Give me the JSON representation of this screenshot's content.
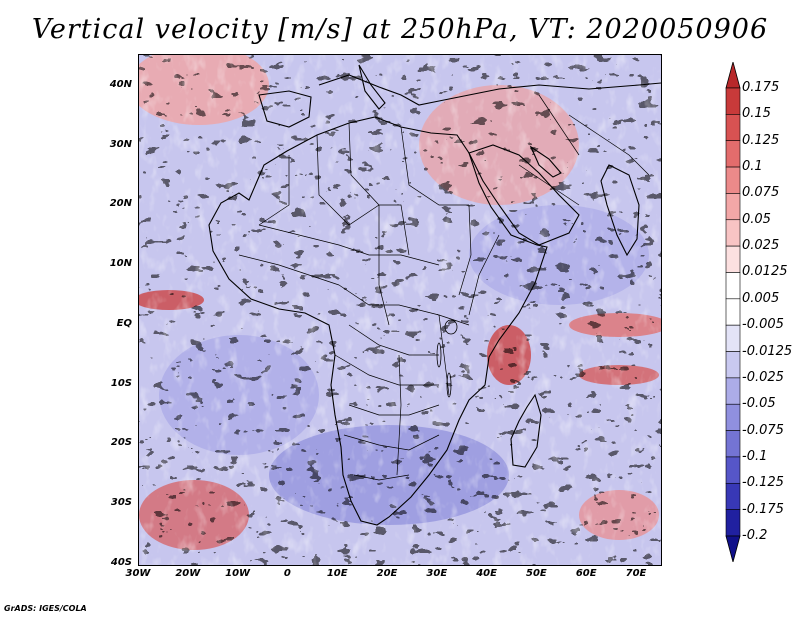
{
  "title": "Vertical velocity [m/s] at 250hPa, VT: 2020050906",
  "credit": "GrADS: IGES/COLA",
  "map": {
    "lon_range": [
      -30,
      75
    ],
    "lat_range": [
      -40,
      45
    ],
    "lat_ticks": [
      "40N",
      "30N",
      "20N",
      "10N",
      "EQ",
      "10S",
      "20S",
      "30S",
      "40S"
    ],
    "lon_ticks": [
      "30W",
      "20W",
      "10W",
      "0",
      "10E",
      "20E",
      "30E",
      "40E",
      "50E",
      "60E",
      "70E"
    ]
  },
  "colorbar": {
    "labels": [
      "0.175",
      "0.15",
      "0.125",
      "0.1",
      "0.075",
      "0.05",
      "0.025",
      "0.0125",
      "0.005",
      "-0.005",
      "-0.0125",
      "-0.025",
      "-0.05",
      "-0.075",
      "-0.1",
      "-0.125",
      "-0.175",
      "-0.2"
    ],
    "colors": [
      "#b8282a",
      "#c83a3a",
      "#d85252",
      "#e36c6c",
      "#ec8a8a",
      "#f3a7a7",
      "#f8c4c4",
      "#fce0e0",
      "#ffffff",
      "#ffffff",
      "#e3e3f7",
      "#c9c9f0",
      "#acace8",
      "#9090df",
      "#7474d4",
      "#5656c8",
      "#3838b6",
      "#2020a0",
      "#10108a"
    ]
  }
}
